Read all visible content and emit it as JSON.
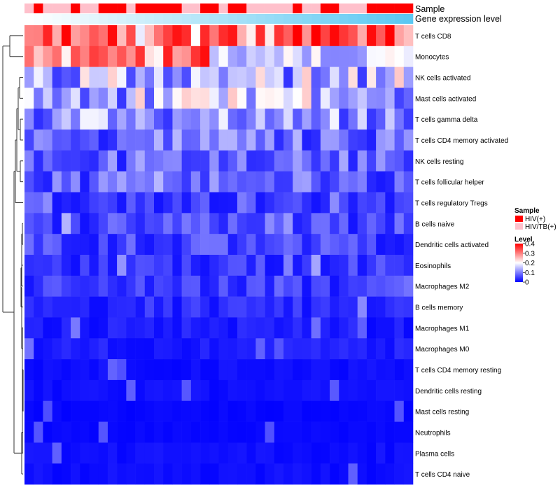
{
  "chart_data": {
    "type": "heatmap",
    "annotation_labels": {
      "sample": "Sample",
      "gene_expression": "Gene expression level"
    },
    "rows": [
      "T cells CD8",
      "Monocytes",
      "NK cells activated",
      "Mast cells activated",
      "T cells gamma delta",
      "T cells CD4 memory activated",
      "NK cells resting",
      "T cells follicular helper",
      "T cells regulatory  Tregs",
      "B cells naive",
      "Dendritic cells activated",
      "Eosinophils",
      "Macrophages M2",
      "B cells memory",
      "Macrophages M1",
      "Macrophages M0",
      "T cells CD4 memory resting",
      "Dendritic cells resting",
      "Mast cells resting",
      "Neutrophils",
      "Plasma cells",
      "T cells CD4 naive"
    ],
    "n_samples": 42,
    "row_mean_levels": [
      0.31,
      0.22,
      0.13,
      0.13,
      0.11,
      0.08,
      0.07,
      0.07,
      0.05,
      0.05,
      0.05,
      0.04,
      0.04,
      0.03,
      0.02,
      0.02,
      0.01,
      0.01,
      0.005,
      0.005,
      0.01,
      0.01
    ],
    "legend": {
      "sample_title": "Sample",
      "sample_groups": [
        {
          "label": "HIV(+)",
          "color": "#ff0000"
        },
        {
          "label": "HIV/TB(+)",
          "color": "#ffc0cb"
        }
      ],
      "level_title": "Level",
      "level_ticks": [
        "0.4",
        "0.3",
        "0.2",
        "0.1",
        "0"
      ],
      "level_range": [
        0,
        0.4
      ],
      "colors": {
        "low": "#0000ff",
        "mid": "#ffffff",
        "high": "#ff0000"
      }
    },
    "gene_expression_gradient": [
      "#ffffff",
      "#5bc8f2"
    ]
  }
}
